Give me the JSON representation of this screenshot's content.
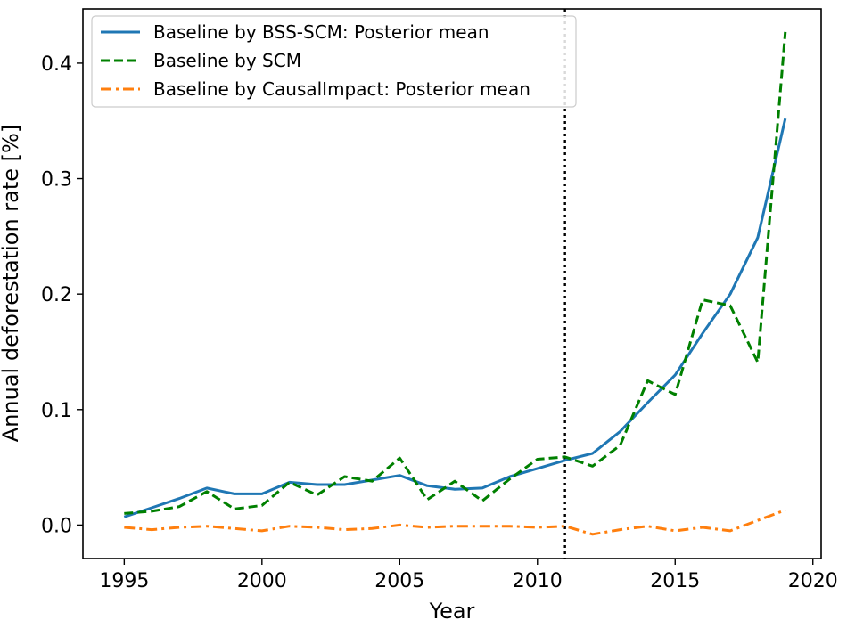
{
  "chart_data": {
    "type": "line",
    "xlabel": "Year",
    "ylabel": "Annual deforestation rate [%]",
    "xlim": [
      1993.5,
      2020.3
    ],
    "ylim": [
      -0.029,
      0.447
    ],
    "xticks": [
      1995,
      2000,
      2005,
      2010,
      2015,
      2020
    ],
    "yticks": [
      0.0,
      0.1,
      0.2,
      0.3,
      0.4
    ],
    "ytick_labels": [
      "0.0",
      "0.1",
      "0.2",
      "0.3",
      "0.4"
    ],
    "intervention_year": 2011,
    "legend_position": "top-left",
    "x": [
      1995,
      1996,
      1997,
      1998,
      1999,
      2000,
      2001,
      2002,
      2003,
      2004,
      2005,
      2006,
      2007,
      2008,
      2009,
      2010,
      2011,
      2012,
      2013,
      2014,
      2015,
      2016,
      2017,
      2018,
      2019
    ],
    "series": [
      {
        "name": "Baseline by BSS-SCM: Posterior mean",
        "color": "#1f77b4",
        "style": "solid",
        "values": [
          0.007,
          0.015,
          0.023,
          0.032,
          0.027,
          0.027,
          0.037,
          0.035,
          0.035,
          0.039,
          0.043,
          0.034,
          0.031,
          0.032,
          0.042,
          0.049,
          0.056,
          0.062,
          0.081,
          0.106,
          0.13,
          0.166,
          0.2,
          0.249,
          0.352
        ]
      },
      {
        "name": "Baseline by SCM",
        "color": "#008000",
        "style": "dashed",
        "values": [
          0.01,
          0.012,
          0.016,
          0.029,
          0.014,
          0.017,
          0.037,
          0.026,
          0.042,
          0.038,
          0.058,
          0.022,
          0.038,
          0.021,
          0.04,
          0.057,
          0.059,
          0.051,
          0.069,
          0.125,
          0.113,
          0.195,
          0.19,
          0.141,
          0.427
        ]
      },
      {
        "name": "Baseline by CausalImpact: Posterior mean",
        "color": "#ff7f0e",
        "style": "dashdot",
        "values": [
          -0.002,
          -0.004,
          -0.002,
          -0.001,
          -0.003,
          -0.005,
          -0.001,
          -0.002,
          -0.004,
          -0.003,
          0.0,
          -0.002,
          -0.001,
          -0.001,
          -0.001,
          -0.002,
          -0.001,
          -0.008,
          -0.004,
          -0.001,
          -0.005,
          -0.002,
          -0.005,
          0.004,
          0.013
        ]
      }
    ]
  }
}
